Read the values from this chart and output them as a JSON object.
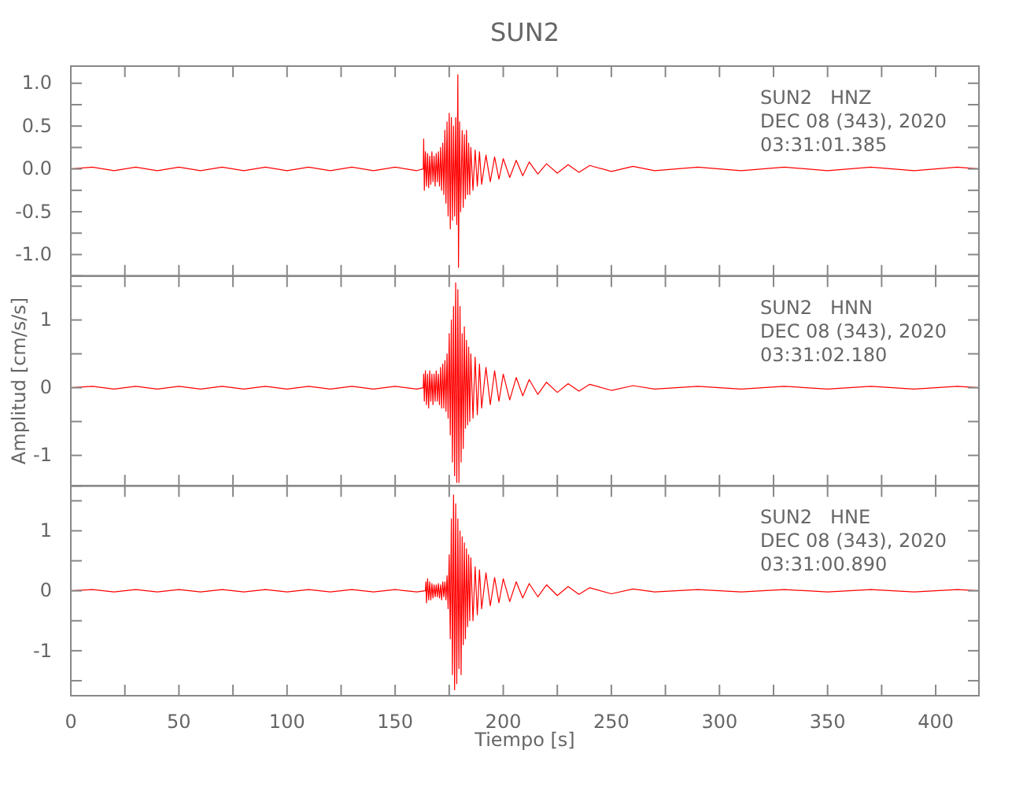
{
  "chart_data": [
    {
      "type": "line",
      "title": "SUN2",
      "annotations": [
        "SUN2   HNZ",
        "DEC 08 (343), 2020",
        "03:31:01.385"
      ],
      "xlim": [
        0,
        420
      ],
      "ylim": [
        -1.25,
        1.2
      ],
      "tick_labels": "y",
      "line_style": "solid",
      "marker": "none",
      "grid": false,
      "xticks": [
        0,
        {
          "value": 25,
          "label": null
        },
        50,
        {
          "value": 75,
          "label": null
        },
        100,
        {
          "value": 125,
          "label": null
        },
        150,
        {
          "value": 175,
          "label": null
        },
        200,
        {
          "value": 225,
          "label": null
        },
        250,
        {
          "value": 275,
          "label": null
        },
        300,
        {
          "value": 325,
          "label": null
        },
        350,
        {
          "value": 375,
          "label": null
        },
        400
      ],
      "yticks": [
        {
          "value": -1,
          "label": "-1.0"
        },
        {
          "value": -0.75,
          "label": null
        },
        {
          "value": -0.5,
          "label": "-0.5"
        },
        {
          "value": -0.25,
          "label": null
        },
        {
          "value": 0,
          "label": "0.0"
        },
        {
          "value": 0.25,
          "label": null
        },
        {
          "value": 0.5,
          "label": "0.5"
        },
        {
          "value": 0.75,
          "label": null
        },
        {
          "value": 1,
          "label": "1.0"
        }
      ],
      "series": [
        {
          "color": "#ff0000",
          "x": [
            0,
            10,
            20,
            30,
            40,
            50,
            60,
            70,
            80,
            90,
            100,
            110,
            120,
            130,
            140,
            150,
            160,
            163,
            163.2,
            163.5,
            164,
            164.5,
            165,
            165.5,
            166,
            166.5,
            167,
            167.5,
            168,
            168.5,
            169,
            169.5,
            170,
            170.5,
            171,
            171.5,
            172,
            172.5,
            173,
            173.5,
            174,
            174.5,
            175,
            175.5,
            176,
            176.5,
            177,
            177.5,
            178,
            178.5,
            179,
            179.3,
            179.8,
            180.3,
            181,
            181.5,
            182,
            182.5,
            183,
            183.5,
            184,
            184.5,
            185,
            186,
            187,
            188,
            189,
            190,
            192,
            194,
            196,
            198,
            200,
            203,
            206,
            209,
            212,
            216,
            220,
            225,
            230,
            235,
            240,
            250,
            260,
            270,
            290,
            310,
            330,
            350,
            370,
            390,
            410,
            420
          ],
          "values": [
            0,
            0.02,
            -0.02,
            0.02,
            -0.02,
            0.02,
            -0.02,
            0.02,
            -0.02,
            0.02,
            -0.02,
            0.02,
            -0.02,
            0.02,
            -0.02,
            0.02,
            -0.02,
            0,
            0.35,
            -0.25,
            0.2,
            -0.2,
            0.18,
            -0.22,
            0.15,
            -0.18,
            0.2,
            -0.15,
            0.15,
            -0.2,
            0.18,
            -0.15,
            0.2,
            -0.2,
            0.25,
            -0.25,
            0.3,
            -0.3,
            0.45,
            -0.4,
            0.55,
            -0.55,
            0.65,
            -0.7,
            0.6,
            -0.6,
            0.5,
            -0.55,
            0.6,
            -0.65,
            1.1,
            -1.15,
            0.55,
            -0.5,
            0.45,
            -0.45,
            0.4,
            -0.35,
            0.45,
            -0.3,
            0.3,
            -0.3,
            0.25,
            -0.25,
            0.22,
            -0.2,
            0.2,
            -0.18,
            0.16,
            -0.15,
            0.14,
            -0.12,
            0.12,
            -0.1,
            0.1,
            -0.08,
            0.08,
            -0.06,
            0.06,
            -0.05,
            0.05,
            -0.04,
            0.04,
            -0.03,
            0.03,
            -0.02,
            0.02,
            -0.02,
            0.02,
            -0.02,
            0.02,
            -0.02,
            0.02,
            0
          ]
        }
      ]
    },
    {
      "type": "line",
      "ylabel": "Amplitud [cm/s/s]",
      "annotations": [
        "SUN2   HNN",
        "DEC 08 (343), 2020",
        "03:31:02.180"
      ],
      "xlim": [
        0,
        420
      ],
      "ylim": [
        -1.45,
        1.65
      ],
      "tick_labels": "y",
      "line_style": "solid",
      "marker": "none",
      "grid": false,
      "xticks": [
        0,
        {
          "value": 25,
          "label": null
        },
        50,
        {
          "value": 75,
          "label": null
        },
        100,
        {
          "value": 125,
          "label": null
        },
        150,
        {
          "value": 175,
          "label": null
        },
        200,
        {
          "value": 225,
          "label": null
        },
        250,
        {
          "value": 275,
          "label": null
        },
        300,
        {
          "value": 325,
          "label": null
        },
        350,
        {
          "value": 375,
          "label": null
        },
        400
      ],
      "yticks": [
        -1,
        {
          "value": -0.5,
          "label": null
        },
        0,
        {
          "value": 0.5,
          "label": null
        },
        1,
        {
          "value": 1.5,
          "label": null
        }
      ],
      "series": [
        {
          "color": "#ff0000",
          "x": [
            0,
            10,
            20,
            30,
            40,
            50,
            60,
            70,
            80,
            90,
            100,
            110,
            120,
            130,
            140,
            150,
            160,
            163,
            163.2,
            163.5,
            164,
            164.5,
            165,
            165.5,
            166,
            166.5,
            167,
            167.5,
            168,
            168.5,
            169,
            169.5,
            170,
            170.5,
            171,
            171.5,
            172,
            172.5,
            173,
            173.5,
            174,
            174.5,
            175,
            175.5,
            176,
            176.5,
            177,
            177.5,
            178,
            178.5,
            179,
            179.5,
            180,
            180.5,
            181,
            181.5,
            182,
            182.5,
            183,
            183.5,
            184,
            184.5,
            185,
            186,
            187,
            188,
            189,
            190,
            192,
            194,
            196,
            198,
            200,
            203,
            206,
            209,
            212,
            216,
            220,
            225,
            230,
            235,
            240,
            250,
            260,
            270,
            290,
            310,
            330,
            350,
            370,
            390,
            410,
            420
          ],
          "values": [
            0,
            0.02,
            -0.02,
            0.02,
            -0.02,
            0.02,
            -0.02,
            0.02,
            -0.02,
            0.02,
            -0.02,
            0.02,
            -0.02,
            0.02,
            -0.02,
            0.02,
            -0.02,
            0,
            0.2,
            -0.2,
            0.25,
            -0.25,
            0.2,
            -0.3,
            0.25,
            -0.2,
            0.2,
            -0.25,
            0.2,
            -0.2,
            0.25,
            -0.2,
            0.2,
            -0.25,
            0.3,
            -0.3,
            0.35,
            -0.3,
            0.4,
            -0.35,
            0.5,
            -0.45,
            0.8,
            -0.7,
            1.0,
            -1.1,
            1.2,
            -1.3,
            1.55,
            -1.4,
            1.45,
            -1.4,
            1.2,
            -1.1,
            0.8,
            -0.9,
            0.9,
            -0.6,
            0.7,
            -0.55,
            0.6,
            -0.5,
            0.5,
            -0.45,
            0.45,
            -0.4,
            0.35,
            -0.3,
            0.3,
            -0.25,
            0.25,
            -0.2,
            0.2,
            -0.18,
            0.15,
            -0.12,
            0.12,
            -0.1,
            0.08,
            -0.07,
            0.06,
            -0.05,
            0.05,
            -0.04,
            0.03,
            -0.02,
            0.02,
            -0.02,
            0.02,
            -0.02,
            0.02,
            -0.02,
            0.02,
            0
          ]
        }
      ]
    },
    {
      "type": "line",
      "xlabel": "Tiempo [s]",
      "annotations": [
        "SUN2   HNE",
        "DEC 08 (343), 2020",
        "03:31:00.890"
      ],
      "xlim": [
        0,
        420
      ],
      "ylim": [
        -1.75,
        1.75
      ],
      "line_style": "solid",
      "marker": "none",
      "grid": false,
      "xticks": [
        0,
        {
          "value": 25,
          "label": null
        },
        50,
        {
          "value": 75,
          "label": null
        },
        100,
        {
          "value": 125,
          "label": null
        },
        150,
        {
          "value": 175,
          "label": null
        },
        200,
        {
          "value": 225,
          "label": null
        },
        250,
        {
          "value": 275,
          "label": null
        },
        300,
        {
          "value": 325,
          "label": null
        },
        350,
        {
          "value": 375,
          "label": null
        },
        400
      ],
      "yticks": [
        {
          "value": -1.5,
          "label": null
        },
        -1,
        {
          "value": -0.5,
          "label": null
        },
        0,
        {
          "value": 0.5,
          "label": null
        },
        1,
        {
          "value": 1.5,
          "label": null
        }
      ],
      "series": [
        {
          "color": "#ff0000",
          "x": [
            0,
            10,
            20,
            30,
            40,
            50,
            60,
            70,
            80,
            90,
            100,
            110,
            120,
            130,
            140,
            150,
            160,
            164,
            164.2,
            164.5,
            165,
            165.5,
            166,
            166.5,
            167,
            167.5,
            168,
            168.5,
            169,
            169.5,
            170,
            170.5,
            171,
            171.5,
            172,
            172.5,
            173,
            173.5,
            174,
            174.5,
            175,
            175.5,
            176,
            176.5,
            177,
            177.5,
            178,
            178.5,
            179,
            179.5,
            180,
            180.5,
            181,
            181.5,
            182,
            182.5,
            183,
            183.5,
            184,
            184.5,
            185,
            186,
            187,
            188,
            189,
            190,
            192,
            194,
            196,
            198,
            200,
            203,
            206,
            209,
            212,
            216,
            220,
            225,
            230,
            235,
            240,
            250,
            260,
            270,
            290,
            310,
            330,
            350,
            370,
            390,
            410,
            420
          ],
          "values": [
            0,
            0.02,
            -0.02,
            0.02,
            -0.02,
            0.02,
            -0.02,
            0.02,
            -0.02,
            0.02,
            -0.02,
            0.02,
            -0.02,
            0.02,
            -0.02,
            0.02,
            -0.02,
            0,
            0.15,
            -0.2,
            0.2,
            -0.15,
            0.15,
            -0.15,
            0.12,
            -0.12,
            0.1,
            -0.1,
            0.1,
            -0.1,
            0.12,
            -0.12,
            0.1,
            -0.15,
            0.15,
            -0.1,
            0.15,
            -0.15,
            0.25,
            -0.3,
            0.6,
            -0.8,
            1.2,
            -1.4,
            1.6,
            -1.65,
            1.45,
            -1.55,
            1.2,
            -1.3,
            1.0,
            -1.4,
            0.9,
            -0.9,
            0.8,
            -0.8,
            0.7,
            -0.6,
            0.6,
            -0.5,
            0.55,
            -0.5,
            0.4,
            -0.4,
            0.35,
            -0.3,
            0.3,
            -0.25,
            0.22,
            -0.2,
            0.2,
            -0.18,
            0.15,
            -0.12,
            0.12,
            -0.1,
            0.1,
            -0.08,
            0.07,
            -0.06,
            0.05,
            -0.05,
            0.03,
            -0.02,
            0.02,
            -0.02,
            0.02,
            -0.02,
            0.02,
            -0.02,
            0.02,
            0
          ]
        }
      ]
    }
  ]
}
